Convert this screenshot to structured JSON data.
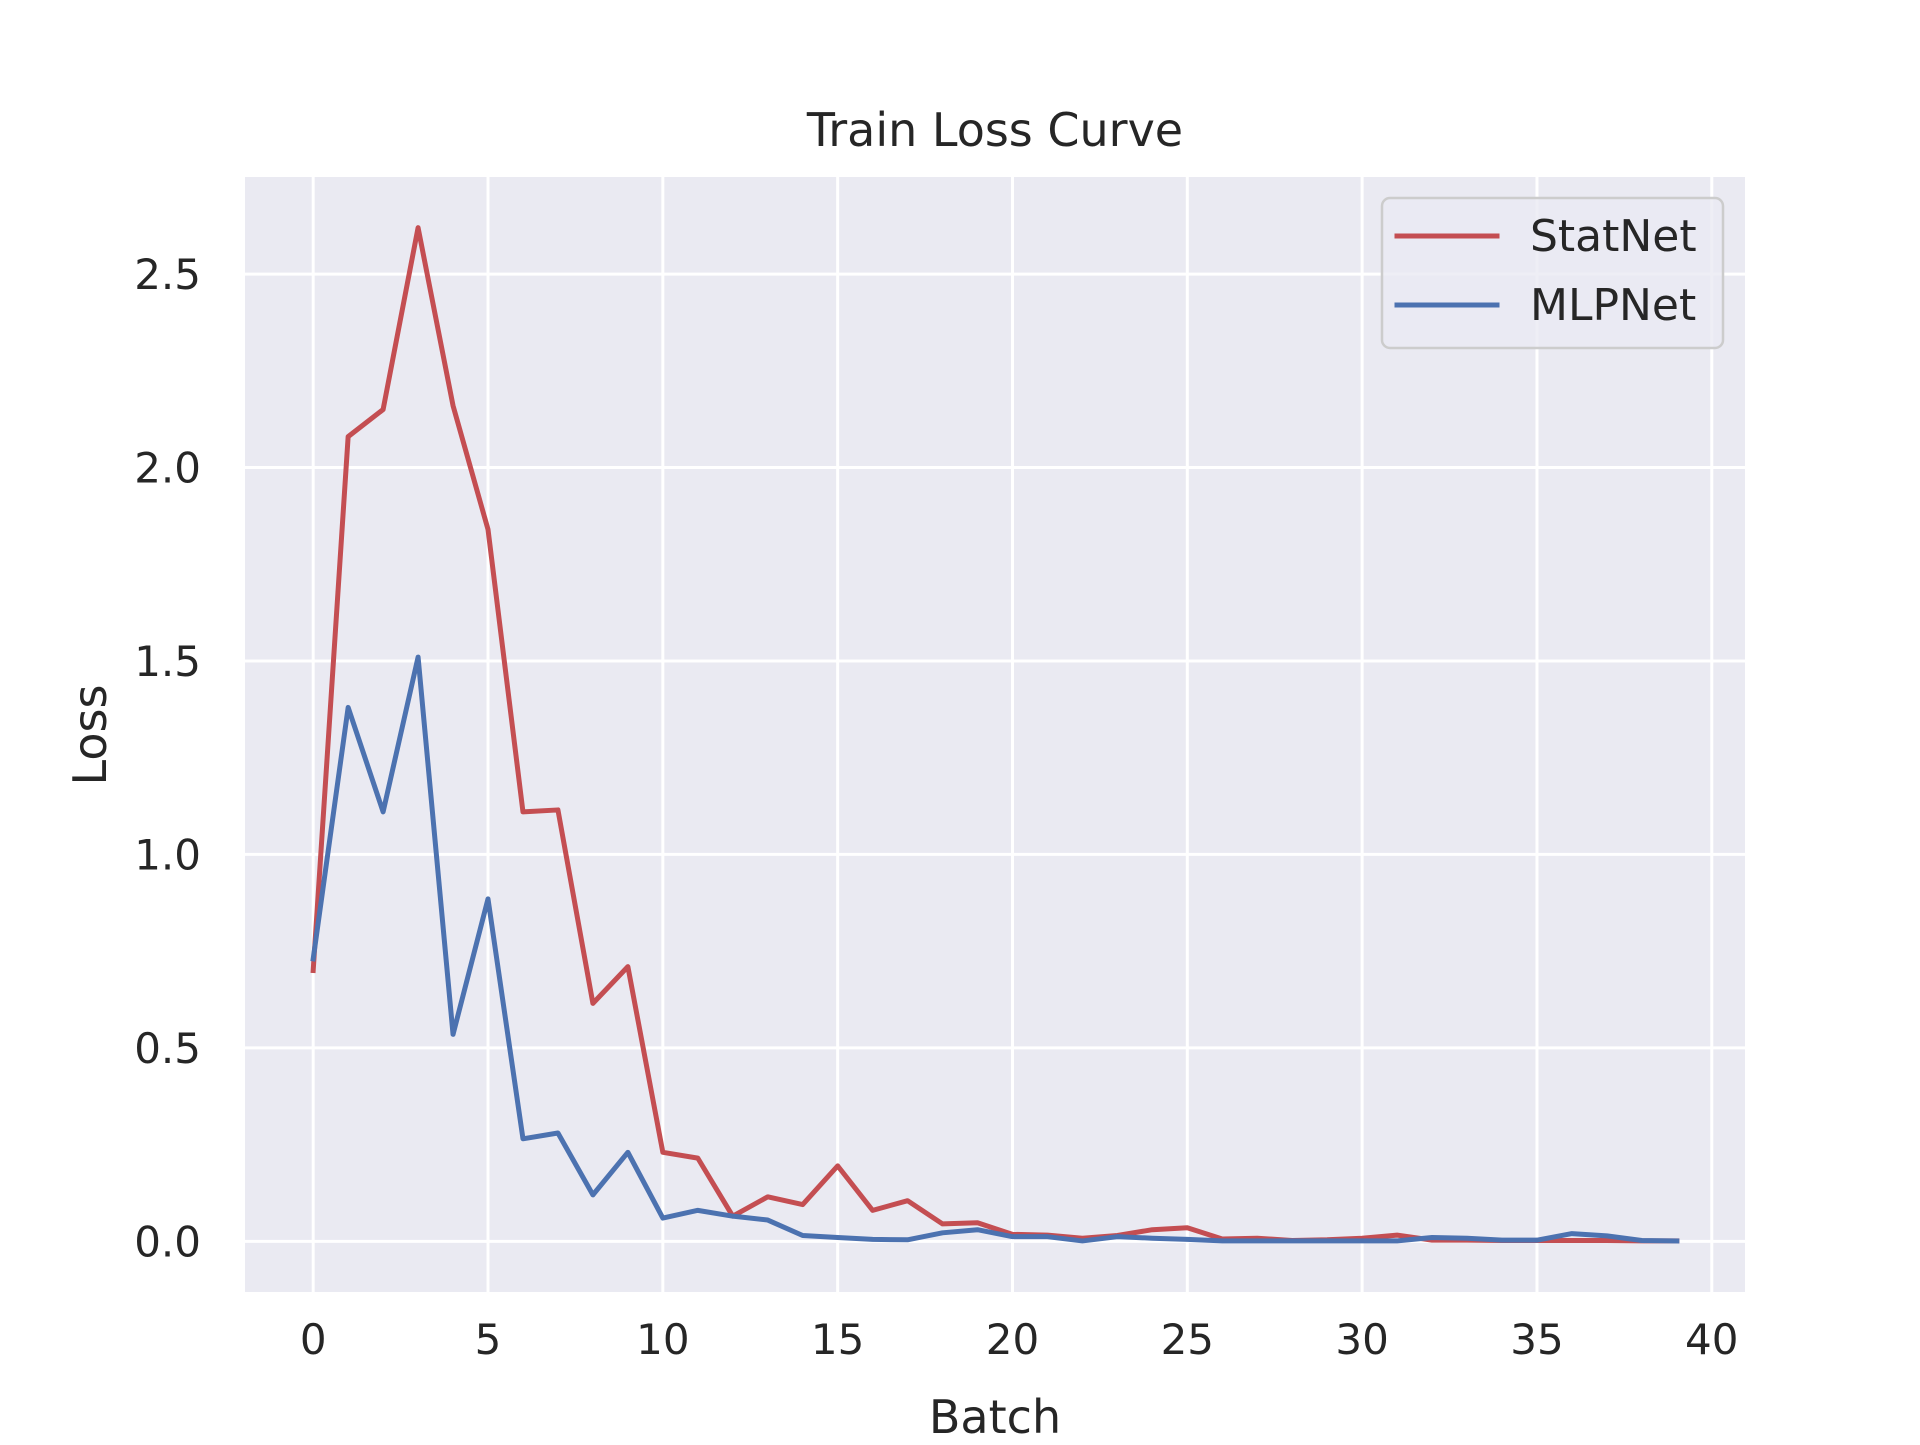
{
  "chart_data": {
    "type": "line",
    "title": "Train Loss Curve",
    "xlabel": "Batch",
    "ylabel": "Loss",
    "xlim": [
      -1.95,
      40.95
    ],
    "ylim": [
      -0.131,
      2.751
    ],
    "xticks": [
      0,
      5,
      10,
      15,
      20,
      25,
      30,
      35,
      40
    ],
    "yticks": [
      0.0,
      0.5,
      1.0,
      1.5,
      2.0,
      2.5
    ],
    "xtick_labels": [
      "0",
      "5",
      "10",
      "15",
      "20",
      "25",
      "30",
      "35",
      "40"
    ],
    "ytick_labels": [
      "0.0",
      "0.5",
      "1.0",
      "1.5",
      "2.0",
      "2.5"
    ],
    "grid": true,
    "legend_position": "top-right",
    "x": [
      0,
      1,
      2,
      3,
      4,
      5,
      6,
      7,
      8,
      9,
      10,
      11,
      12,
      13,
      14,
      15,
      16,
      17,
      18,
      19,
      20,
      21,
      22,
      23,
      24,
      25,
      26,
      27,
      28,
      29,
      30,
      31,
      32,
      33,
      34,
      35,
      36,
      37,
      38,
      39
    ],
    "series": [
      {
        "name": "StatNet",
        "color": "#c44e52",
        "values": [
          0.7,
          2.08,
          2.15,
          2.62,
          2.16,
          1.84,
          1.11,
          1.115,
          0.615,
          0.71,
          0.23,
          0.215,
          0.065,
          0.115,
          0.095,
          0.195,
          0.08,
          0.105,
          0.045,
          0.048,
          0.018,
          0.016,
          0.008,
          0.015,
          0.03,
          0.035,
          0.006,
          0.008,
          0.002,
          0.004,
          0.008,
          0.016,
          0.003,
          0.003,
          0.002,
          0.002,
          0.002,
          0.002,
          0.001,
          0.001
        ]
      },
      {
        "name": "MLPNet",
        "color": "#4c72b0",
        "values": [
          0.73,
          1.38,
          1.11,
          1.51,
          0.535,
          0.885,
          0.265,
          0.28,
          0.12,
          0.23,
          0.06,
          0.08,
          0.065,
          0.055,
          0.015,
          0.01,
          0.005,
          0.004,
          0.022,
          0.03,
          0.012,
          0.012,
          0.001,
          0.012,
          0.008,
          0.005,
          0.001,
          0.001,
          0.001,
          0.001,
          0.001,
          0.001,
          0.01,
          0.008,
          0.003,
          0.003,
          0.02,
          0.014,
          0.002,
          0.001
        ]
      }
    ]
  }
}
